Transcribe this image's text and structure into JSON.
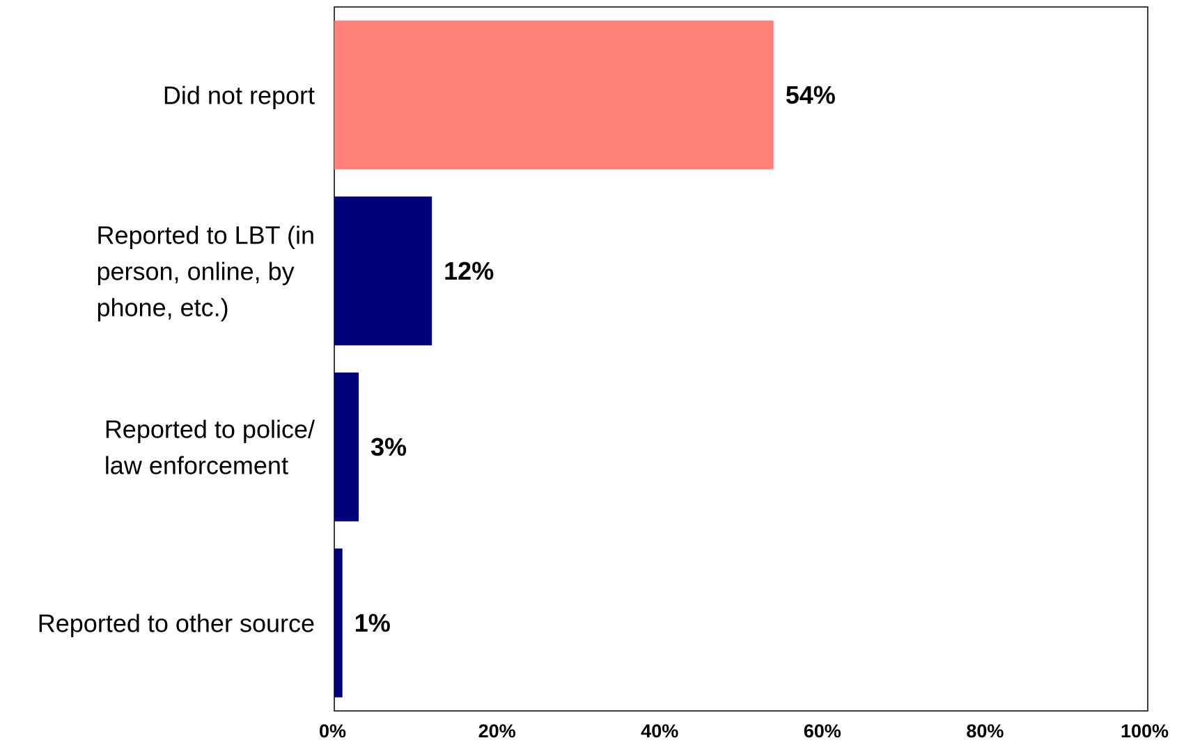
{
  "chart_data": {
    "type": "bar",
    "orientation": "horizontal",
    "categories": [
      [
        "Did not report"
      ],
      [
        "Reported to LBT (in",
        "person, online, by",
        "phone, etc.)"
      ],
      [
        "Reported to police/",
        "law enforcement"
      ],
      [
        "Reported to other source"
      ]
    ],
    "values": [
      54,
      12,
      3,
      1
    ],
    "data_labels": [
      "54%",
      "12%",
      "3%",
      "1%"
    ],
    "bar_colors": [
      "#ff8078",
      "#000078",
      "#000078",
      "#000078"
    ],
    "xlim": [
      0,
      100
    ],
    "x_ticks": [
      0,
      20,
      40,
      60,
      80,
      100
    ],
    "x_tick_labels": [
      "0%",
      "20%",
      "40%",
      "60%",
      "80%",
      "100%"
    ],
    "grid": false,
    "legend": "none"
  }
}
